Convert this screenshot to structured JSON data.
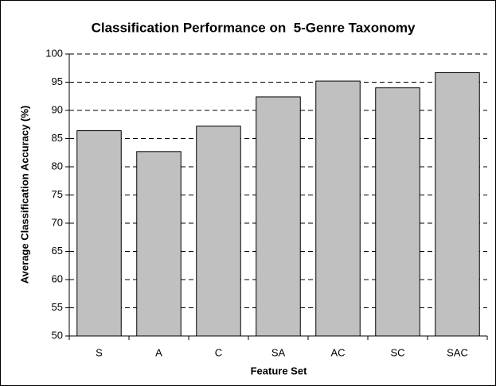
{
  "chart_data": {
    "type": "bar",
    "title": "Classification Performance on  5-Genre Taxonomy",
    "x_label": "Feature Set",
    "y_label": "Average Classification Accuracy (%)",
    "categories": [
      "S",
      "A",
      "C",
      "SA",
      "AC",
      "SC",
      "SAC"
    ],
    "values": [
      86.4,
      82.7,
      87.2,
      92.4,
      95.2,
      94.0,
      96.7
    ],
    "color": "#c0c0c0",
    "ylim": [
      50,
      100
    ],
    "yticks": [
      50,
      55,
      60,
      65,
      70,
      75,
      80,
      85,
      90,
      95,
      100
    ],
    "grid": true
  }
}
